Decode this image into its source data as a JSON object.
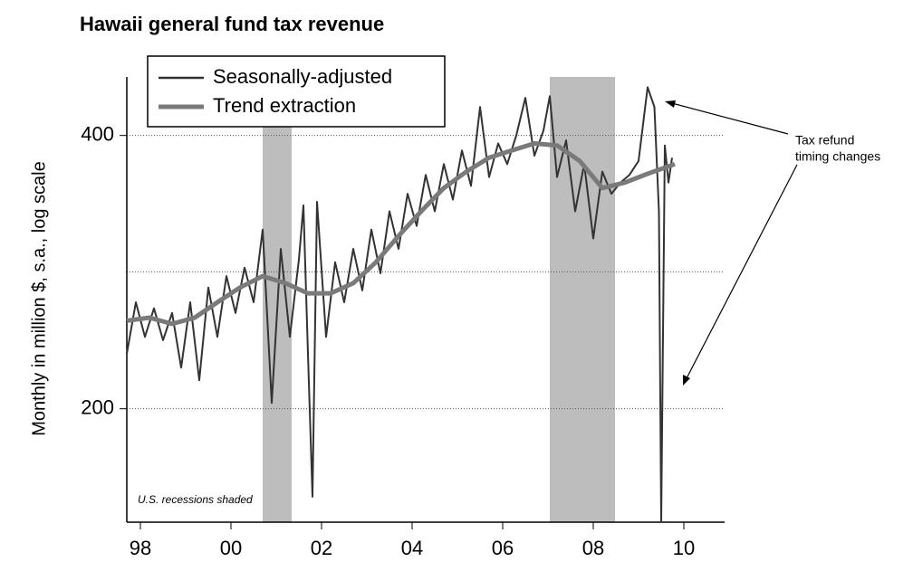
{
  "chart_data": {
    "type": "line",
    "title": "Hawaii general fund tax revenue",
    "ylabel": "Monthly in million $, s.a., log scale",
    "log_scale": true,
    "ylim": [
      150,
      464
    ],
    "yticks": [
      200,
      400
    ],
    "minor_grid": [
      283
    ],
    "xlim": [
      1997.7,
      2010.9
    ],
    "xticks": [
      {
        "value": 1998,
        "label": "98"
      },
      {
        "value": 2000,
        "label": "00"
      },
      {
        "value": 2002,
        "label": "02"
      },
      {
        "value": 2004,
        "label": "04"
      },
      {
        "value": 2006,
        "label": "06"
      },
      {
        "value": 2008,
        "label": "08"
      },
      {
        "value": 2010,
        "label": "10"
      }
    ],
    "recessions": [
      [
        2000.7,
        2001.34
      ],
      [
        2007.04,
        2008.48
      ]
    ],
    "recession_color": "#bdbdbd",
    "note": "U.S. recessions shaded",
    "annotation": [
      "Tax refund",
      "timing changes"
    ],
    "series": [
      {
        "name": "Seasonally-adjusted",
        "color": "#333333",
        "x": [
          1997.7,
          1997.9,
          1998.1,
          1998.3,
          1998.5,
          1998.7,
          1998.9,
          1999.1,
          1999.3,
          1999.5,
          1999.7,
          1999.9,
          2000.1,
          2000.3,
          2000.5,
          2000.7,
          2000.9,
          2001.1,
          2001.3,
          2001.5,
          2001.6,
          2001.7,
          2001.8,
          2001.9,
          2002.1,
          2002.3,
          2002.5,
          2002.7,
          2002.9,
          2003.1,
          2003.3,
          2003.5,
          2003.7,
          2003.9,
          2004.1,
          2004.3,
          2004.5,
          2004.7,
          2004.9,
          2005.1,
          2005.3,
          2005.5,
          2005.7,
          2005.9,
          2006.1,
          2006.3,
          2006.5,
          2006.7,
          2006.9,
          2007.04,
          2007.2,
          2007.4,
          2007.6,
          2007.8,
          2008.0,
          2008.2,
          2008.4,
          2008.6,
          2008.8,
          2009.0,
          2009.2,
          2009.35,
          2009.45,
          2009.5,
          2009.58,
          2009.66,
          2009.74
        ],
        "values": [
          230,
          262,
          240,
          258,
          238,
          255,
          222,
          262,
          215,
          272,
          240,
          280,
          255,
          286,
          262,
          315,
          203,
          300,
          240,
          292,
          335,
          230,
          160,
          338,
          240,
          290,
          262,
          300,
          270,
          315,
          282,
          330,
          300,
          345,
          318,
          362,
          330,
          372,
          340,
          385,
          352,
          430,
          360,
          392,
          372,
          400,
          440,
          380,
          405,
          442,
          360,
          395,
          330,
          372,
          308,
          365,
          345,
          355,
          362,
          375,
          452,
          430,
          330,
          150,
          390,
          355,
          378
        ]
      },
      {
        "name": "Trend extraction",
        "color": "#7a7a7a",
        "x": [
          1997.7,
          1998.2,
          1998.7,
          1999.2,
          1999.7,
          2000.2,
          2000.7,
          2001.2,
          2001.7,
          2002.2,
          2002.7,
          2003.2,
          2003.7,
          2004.2,
          2004.7,
          2005.2,
          2005.7,
          2006.2,
          2006.7,
          2007.2,
          2007.7,
          2008.2,
          2008.7,
          2009.2,
          2009.8
        ],
        "values": [
          250,
          252,
          248,
          252,
          262,
          272,
          280,
          275,
          268,
          268,
          275,
          290,
          310,
          330,
          350,
          365,
          378,
          385,
          392,
          390,
          375,
          350,
          355,
          363,
          372
        ]
      }
    ]
  }
}
